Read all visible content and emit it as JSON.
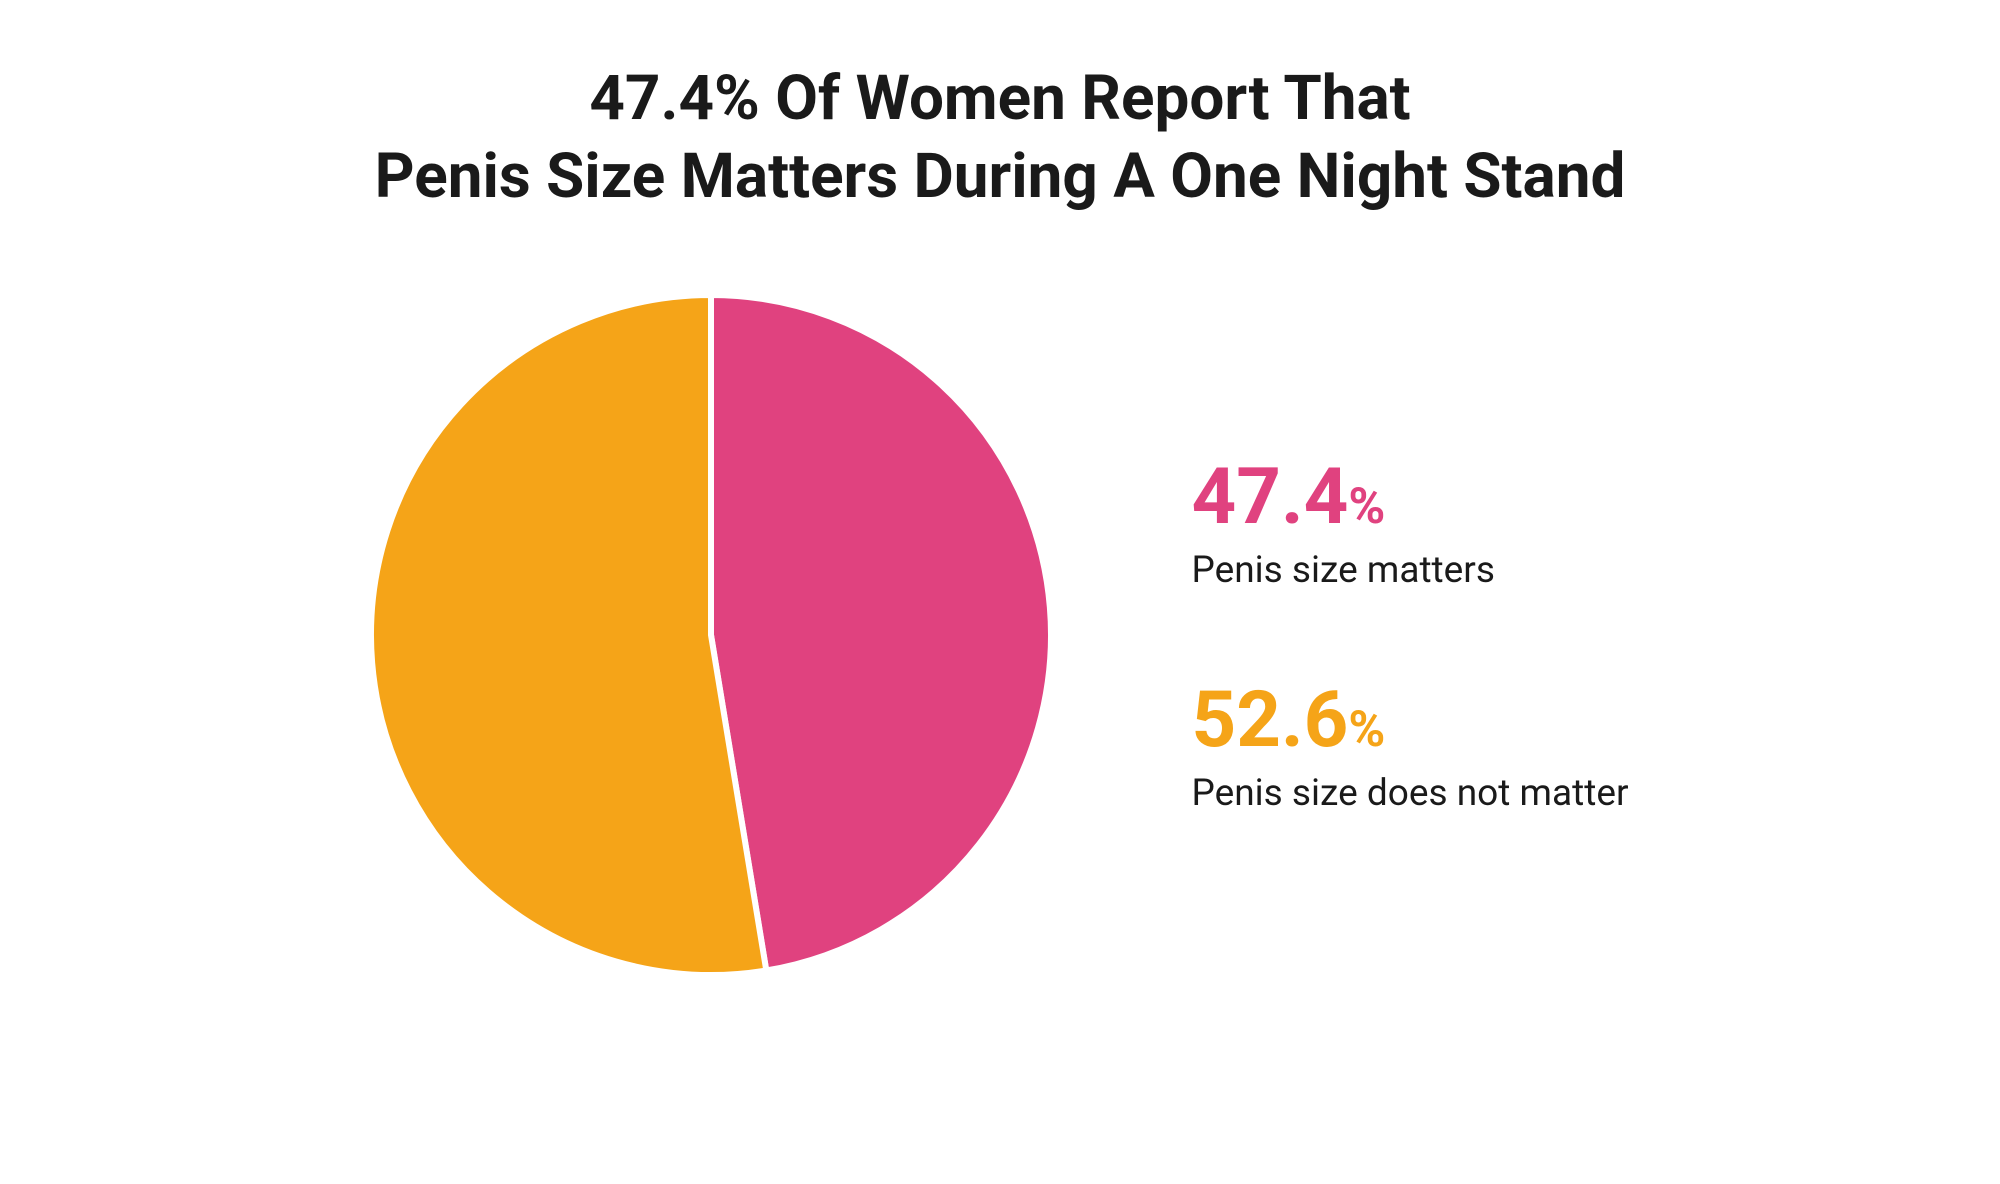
{
  "chart": {
    "type": "pie",
    "title_line1": "47.4% Of Women Report That",
    "title_line2": "Penis Size Matters During A One Night Stand",
    "title_fontsize": 62,
    "title_color": "#1a1a1a",
    "background_color": "#ffffff",
    "pie_radius": 340,
    "slice_gap_color": "#ffffff",
    "slice_gap_width": 6,
    "slices": [
      {
        "value": 47.4,
        "color": "#e0427f",
        "label": "Penis size matters"
      },
      {
        "value": 52.6,
        "color": "#f5a418",
        "label": "Penis size does not matter"
      }
    ],
    "legend": {
      "num_fontsize": 78,
      "pct_sign_fontsize": 50,
      "label_fontsize": 37,
      "label_color": "#1a1a1a",
      "items": [
        {
          "num": "47.4",
          "pct": "%",
          "label": "Penis size matters",
          "color": "#e0427f"
        },
        {
          "num": "52.6",
          "pct": "%",
          "label": "Penis size does not matter",
          "color": "#f5a418"
        }
      ]
    }
  }
}
